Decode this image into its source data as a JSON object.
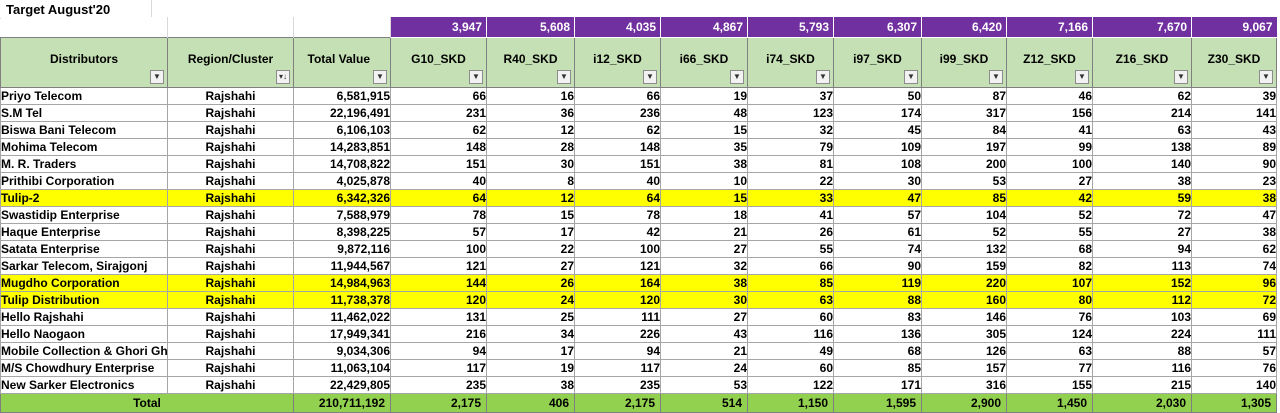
{
  "sheet": {
    "title": "Target August'20",
    "columns": [
      "Distributors",
      "Region/Cluster",
      "Total Value",
      "G10_SKD",
      "R40_SKD",
      "i12_SKD",
      "i66_SKD",
      "i74_SKD",
      "i97_SKD",
      "i99_SKD",
      "Z12_SKD",
      "Z16_SKD",
      "Z30_SKD"
    ],
    "top_sums": [
      "3,947",
      "5,608",
      "4,035",
      "4,867",
      "5,793",
      "6,307",
      "6,420",
      "7,166",
      "7,670",
      "9,067"
    ],
    "filter_icons": {
      "default": "dropdown-arrow-icon",
      "sorted": "sort-filter-icon"
    },
    "highlight_color": "#ffff00",
    "header_color": "#c5e0b4",
    "sum_color": "#7030a0",
    "total_color": "#92d050",
    "rows": [
      {
        "distributor": "Priyo Telecom",
        "region": "Rajshahi",
        "total": "6,581,915",
        "vals": [
          "66",
          "16",
          "66",
          "19",
          "37",
          "50",
          "87",
          "46",
          "62",
          "39"
        ],
        "highlight": false
      },
      {
        "distributor": "S.M Tel",
        "region": "Rajshahi",
        "total": "22,196,491",
        "vals": [
          "231",
          "36",
          "236",
          "48",
          "123",
          "174",
          "317",
          "156",
          "214",
          "141"
        ],
        "highlight": false
      },
      {
        "distributor": "Biswa Bani Telecom",
        "region": "Rajshahi",
        "total": "6,106,103",
        "vals": [
          "62",
          "12",
          "62",
          "15",
          "32",
          "45",
          "84",
          "41",
          "63",
          "43"
        ],
        "highlight": false
      },
      {
        "distributor": "Mohima Telecom",
        "region": "Rajshahi",
        "total": "14,283,851",
        "vals": [
          "148",
          "28",
          "148",
          "35",
          "79",
          "109",
          "197",
          "99",
          "138",
          "89"
        ],
        "highlight": false
      },
      {
        "distributor": "M. R. Traders",
        "region": "Rajshahi",
        "total": "14,708,822",
        "vals": [
          "151",
          "30",
          "151",
          "38",
          "81",
          "108",
          "200",
          "100",
          "140",
          "90"
        ],
        "highlight": false
      },
      {
        "distributor": "Prithibi Corporation",
        "region": "Rajshahi",
        "total": "4,025,878",
        "vals": [
          "40",
          "8",
          "40",
          "10",
          "22",
          "30",
          "53",
          "27",
          "38",
          "23"
        ],
        "highlight": false
      },
      {
        "distributor": "Tulip-2",
        "region": "Rajshahi",
        "total": "6,342,326",
        "vals": [
          "64",
          "12",
          "64",
          "15",
          "33",
          "47",
          "85",
          "42",
          "59",
          "38"
        ],
        "highlight": true
      },
      {
        "distributor": "Swastidip Enterprise",
        "region": "Rajshahi",
        "total": "7,588,979",
        "vals": [
          "78",
          "15",
          "78",
          "18",
          "41",
          "57",
          "104",
          "52",
          "72",
          "47"
        ],
        "highlight": false
      },
      {
        "distributor": "Haque Enterprise",
        "region": "Rajshahi",
        "total": "8,398,225",
        "vals": [
          "57",
          "17",
          "42",
          "21",
          "26",
          "61",
          "52",
          "55",
          "27",
          "38"
        ],
        "highlight": false
      },
      {
        "distributor": "Satata Enterprise",
        "region": "Rajshahi",
        "total": "9,872,116",
        "vals": [
          "100",
          "22",
          "100",
          "27",
          "55",
          "74",
          "132",
          "68",
          "94",
          "62"
        ],
        "highlight": false
      },
      {
        "distributor": "Sarkar Telecom, Sirajgonj",
        "region": "Rajshahi",
        "total": "11,944,567",
        "vals": [
          "121",
          "27",
          "121",
          "32",
          "66",
          "90",
          "159",
          "82",
          "113",
          "74"
        ],
        "highlight": false
      },
      {
        "distributor": "Mugdho Corporation",
        "region": "Rajshahi",
        "total": "14,984,963",
        "vals": [
          "144",
          "26",
          "164",
          "38",
          "85",
          "119",
          "220",
          "107",
          "152",
          "96"
        ],
        "highlight": true
      },
      {
        "distributor": "Tulip Distribution",
        "region": "Rajshahi",
        "total": "11,738,378",
        "vals": [
          "120",
          "24",
          "120",
          "30",
          "63",
          "88",
          "160",
          "80",
          "112",
          "72"
        ],
        "highlight": true
      },
      {
        "distributor": "Hello Rajshahi",
        "region": "Rajshahi",
        "total": "11,462,022",
        "vals": [
          "131",
          "25",
          "111",
          "27",
          "60",
          "83",
          "146",
          "76",
          "103",
          "69"
        ],
        "highlight": false
      },
      {
        "distributor": "Hello Naogaon",
        "region": "Rajshahi",
        "total": "17,949,341",
        "vals": [
          "216",
          "34",
          "226",
          "43",
          "116",
          "136",
          "305",
          "124",
          "224",
          "111"
        ],
        "highlight": false
      },
      {
        "distributor": "Mobile Collection & Ghori Gho",
        "region": "Rajshahi",
        "total": "9,034,306",
        "vals": [
          "94",
          "17",
          "94",
          "21",
          "49",
          "68",
          "126",
          "63",
          "88",
          "57"
        ],
        "highlight": false
      },
      {
        "distributor": "M/S Chowdhury Enterprise",
        "region": "Rajshahi",
        "total": "11,063,104",
        "vals": [
          "117",
          "19",
          "117",
          "24",
          "60",
          "85",
          "157",
          "77",
          "116",
          "76"
        ],
        "highlight": false
      },
      {
        "distributor": "New Sarker Electronics",
        "region": "Rajshahi",
        "total": "22,429,805",
        "vals": [
          "235",
          "38",
          "235",
          "53",
          "122",
          "171",
          "316",
          "155",
          "215",
          "140"
        ],
        "highlight": false
      }
    ],
    "total_row": {
      "label": "Total",
      "total": "210,711,192",
      "vals": [
        "2,175",
        "406",
        "2,175",
        "514",
        "1,150",
        "1,595",
        "2,900",
        "1,450",
        "2,030",
        "1,305"
      ]
    }
  }
}
